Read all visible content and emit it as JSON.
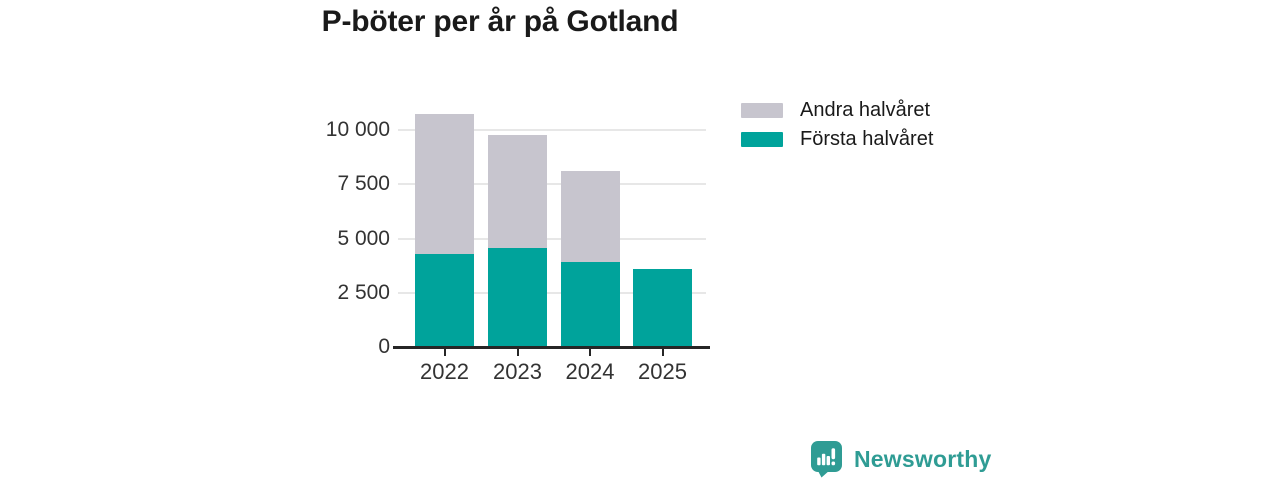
{
  "chart_data": {
    "type": "bar",
    "stacked": true,
    "title": "P-böter per år på Gotland",
    "categories": [
      "2022",
      "2023",
      "2024",
      "2025"
    ],
    "series": [
      {
        "name": "Första halvåret",
        "color": "#00a39b",
        "values": [
          4300,
          4550,
          3930,
          3600
        ]
      },
      {
        "name": "Andra halvåret",
        "color": "#c7c5ce",
        "values": [
          6450,
          5230,
          4180,
          0
        ]
      }
    ],
    "ylim": [
      0,
      10000
    ],
    "yticks": [
      0,
      2500,
      5000,
      7500,
      10000
    ],
    "ytick_labels": [
      "0",
      "2 500",
      "5 000",
      "7 500",
      "10 000"
    ],
    "grid": true,
    "legend": {
      "position": "top-right",
      "entries": [
        "Andra halvåret",
        "Första halvåret"
      ]
    },
    "axis_color": "#262626",
    "grid_color": "#e7e7e7",
    "tick_label_color": "#333333",
    "title_color": "#1a1a1a"
  },
  "branding": {
    "name": "Newsworthy",
    "color": "#2f9c94",
    "icon": "newsworthy-bubble-chart-icon"
  }
}
